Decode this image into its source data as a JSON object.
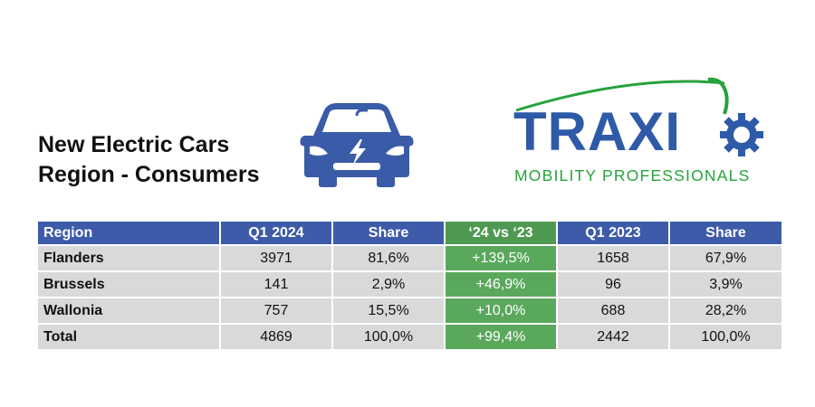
{
  "title": {
    "line1": "New Electric Cars",
    "line2": "Region - Consumers"
  },
  "logo": {
    "word_part1": "TRAX",
    "word_part2": "I",
    "sub": "MOBILITY PROFESSIONALS",
    "brand_color": "#2e5aa8",
    "accent_color": "#27a23c"
  },
  "icons": {
    "car": "electric-car-icon",
    "gear": "gear-icon"
  },
  "table": {
    "headers": [
      "Region",
      "Q1 2024",
      "Share",
      "‘24 vs ‘23",
      "Q1 2023",
      "Share"
    ],
    "rows": [
      [
        "Flanders",
        "3971",
        "81,6%",
        "+139,5%",
        "1658",
        "67,9%"
      ],
      [
        "Brussels",
        "141",
        "2,9%",
        "+46,9%",
        "96",
        "3,9%"
      ],
      [
        "Wallonia",
        "757",
        "15,5%",
        "+10,0%",
        "688",
        "28,2%"
      ],
      [
        "Total",
        "4869",
        "100,0%",
        "+99,4%",
        "2442",
        "100,0%"
      ]
    ],
    "header_color": "#3d5ba8",
    "highlight_color": "#5aa85c",
    "cell_color": "#d9d9d9"
  }
}
